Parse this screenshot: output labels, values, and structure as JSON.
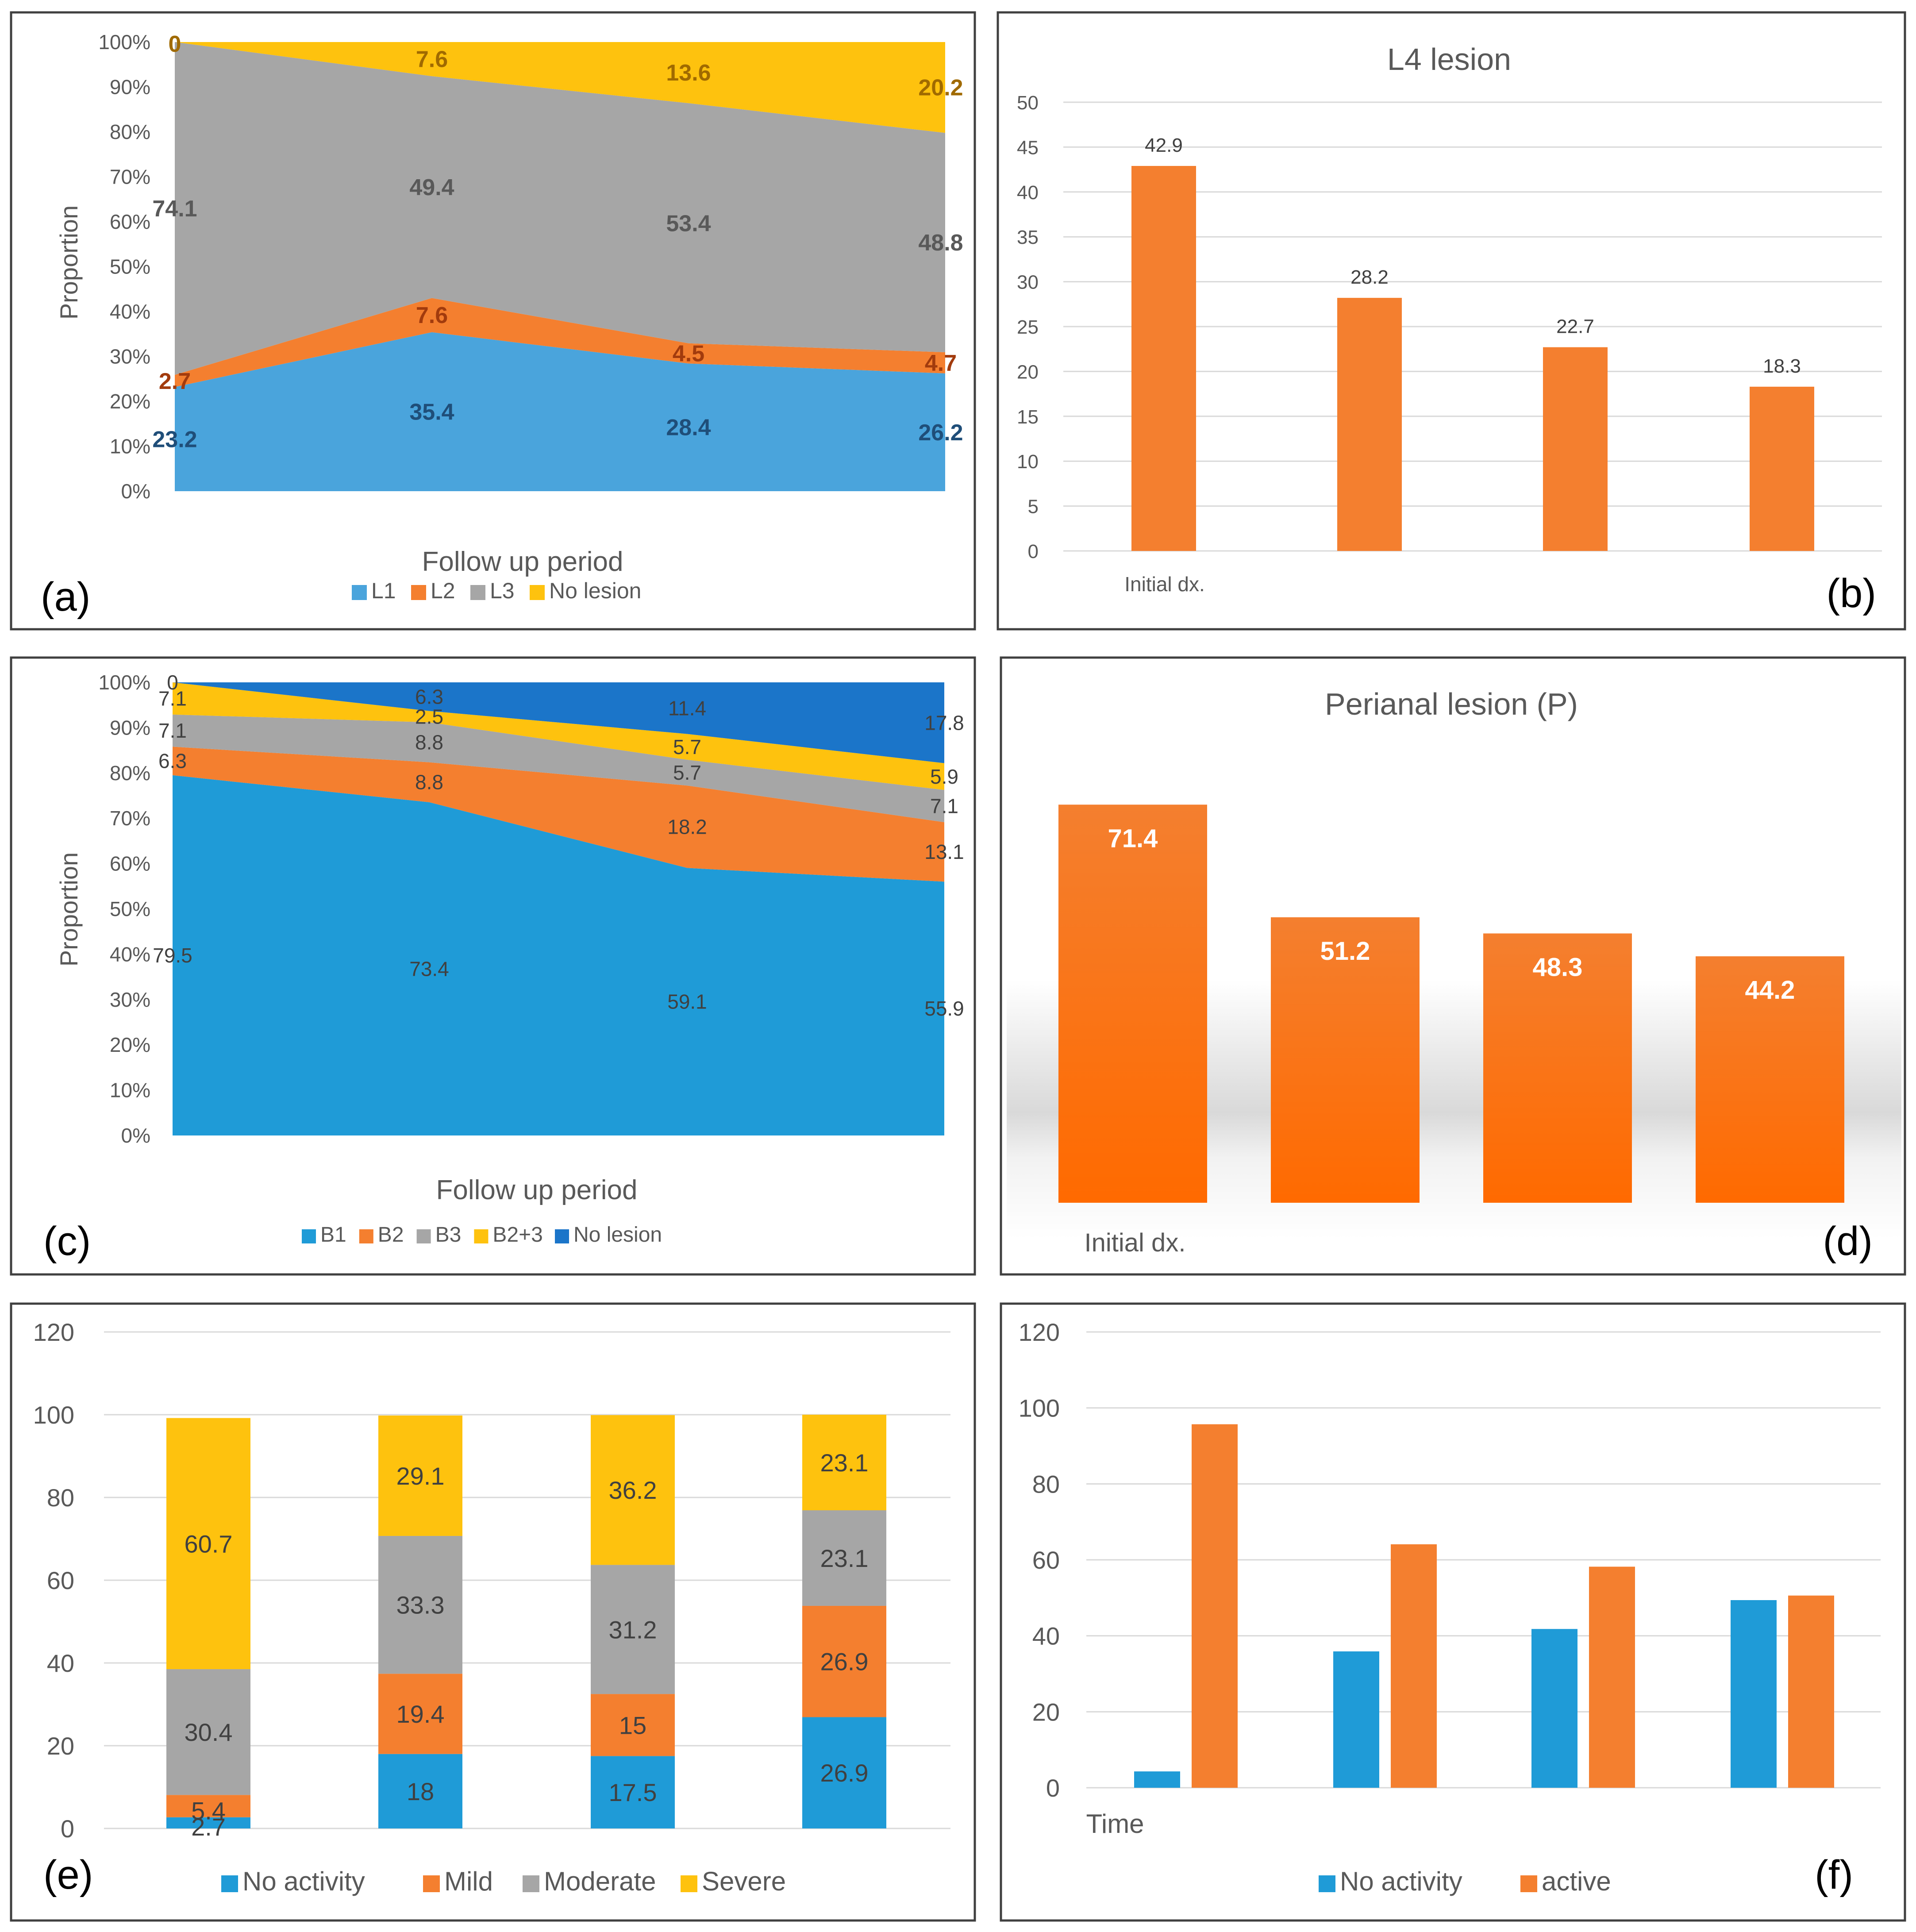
{
  "colors": {
    "blue": "#4aa4dc",
    "blue_dark": "#1f9bd7",
    "navy": "#1b75c9",
    "orange": "#f47f2f",
    "gray": "#a6a6a6",
    "yellow": "#fec20e",
    "panel_border": "#404040",
    "grid": "#d9d9d9",
    "axis_text": "#595959",
    "blue_label": "#1f4e79",
    "orange_label": "#a23b0d",
    "gray_label": "#595959",
    "yellow_label": "#a06a00"
  },
  "chart_data": [
    {
      "id": "a",
      "panel_letter": "(a)",
      "type": "area",
      "stacked_percent": true,
      "xlabel": "Follow up period",
      "ylabel": "Proportion",
      "y_ticks": [
        "100%",
        "90%",
        "80%",
        "70%",
        "60%",
        "50%",
        "40%",
        "30%",
        "20%",
        "10%",
        "0%"
      ],
      "series": [
        {
          "name": "L1",
          "values": [
            23.2,
            35.4,
            28.4,
            26.2
          ],
          "labels": [
            "23.2",
            "35.4",
            "28.4",
            "26.2"
          ]
        },
        {
          "name": "L2",
          "values": [
            2.7,
            7.6,
            4.5,
            4.7
          ],
          "labels": [
            "2.7",
            "7.6",
            "4.5",
            "4.7"
          ]
        },
        {
          "name": "L3",
          "values": [
            74.1,
            49.4,
            53.4,
            48.8
          ],
          "labels": [
            "74.1",
            "49.4",
            "53.4",
            "48.8"
          ]
        },
        {
          "name": "No lesion",
          "values": [
            0,
            7.6,
            13.6,
            20.2
          ],
          "labels": [
            "0",
            "7.6",
            "13.6",
            "20.2"
          ]
        }
      ],
      "legend": [
        "L1",
        "L2",
        "L3",
        "No lesion"
      ]
    },
    {
      "id": "b",
      "panel_letter": "(b)",
      "type": "bar",
      "title": "L4 lesion",
      "categories": [
        "Initial dx.",
        "",
        "",
        ""
      ],
      "values": [
        42.9,
        28.2,
        22.7,
        18.3
      ],
      "labels": [
        "42.9",
        "28.2",
        "22.7",
        "18.3"
      ],
      "ylim": [
        0,
        50
      ],
      "y_ticks": [
        "50",
        "45",
        "40",
        "35",
        "30",
        "25",
        "20",
        "15",
        "10",
        "5",
        "0"
      ]
    },
    {
      "id": "c",
      "panel_letter": "(c)",
      "type": "area",
      "stacked_percent": true,
      "xlabel": "Follow up period",
      "ylabel": "Proportion",
      "y_ticks": [
        "100%",
        "90%",
        "80%",
        "70%",
        "60%",
        "50%",
        "40%",
        "30%",
        "20%",
        "10%",
        "0%"
      ],
      "series": [
        {
          "name": "B1",
          "values": [
            79.5,
            73.4,
            59.1,
            55.9
          ],
          "labels": [
            "79.5",
            "73.4",
            "59.1",
            "55.9"
          ]
        },
        {
          "name": "B2",
          "values": [
            6.3,
            8.8,
            18.2,
            13.1
          ],
          "labels": [
            "6.3",
            "8.8",
            "18.2",
            "13.1"
          ]
        },
        {
          "name": "B3",
          "values": [
            7.1,
            8.8,
            5.7,
            7.1
          ],
          "labels": [
            "7.1",
            "8.8",
            "5.7",
            "7.1"
          ]
        },
        {
          "name": "B2+3",
          "values": [
            7.1,
            2.5,
            5.7,
            5.9
          ],
          "labels": [
            "7.1",
            "2.5",
            "5.7",
            "5.9"
          ]
        },
        {
          "name": "No lesion",
          "values": [
            0,
            6.3,
            11.4,
            17.8
          ],
          "labels": [
            "0",
            "6.3",
            "11.4",
            "17.8"
          ]
        }
      ],
      "legend": [
        "B1",
        "B2",
        "B3",
        "B2+3",
        "No lesion"
      ]
    },
    {
      "id": "d",
      "panel_letter": "(d)",
      "type": "bar",
      "title": "Perianal lesion (P)",
      "categories": [
        "Initial dx.",
        "",
        "",
        ""
      ],
      "values": [
        71.4,
        51.2,
        48.3,
        44.2
      ],
      "labels": [
        "71.4",
        "51.2",
        "48.3",
        "44.2"
      ]
    },
    {
      "id": "e",
      "panel_letter": "(e)",
      "type": "bar",
      "stacked": true,
      "ylim": [
        0,
        120
      ],
      "y_ticks": [
        "120",
        "100",
        "80",
        "60",
        "40",
        "20",
        "0"
      ],
      "series": [
        {
          "name": "No activity",
          "values": [
            2.7,
            18,
            17.5,
            26.9
          ],
          "labels": [
            "2.7",
            "18",
            "17.5",
            "26.9"
          ]
        },
        {
          "name": "Mild",
          "values": [
            5.4,
            19.4,
            15,
            26.9
          ],
          "labels": [
            "5.4",
            "19.4",
            "15",
            "26.9"
          ]
        },
        {
          "name": "Moderate",
          "values": [
            30.4,
            33.3,
            31.2,
            23.1
          ],
          "labels": [
            "30.4",
            "33.3",
            "31.2",
            "23.1"
          ]
        },
        {
          "name": "Severe",
          "values": [
            60.7,
            29.1,
            36.2,
            23.1
          ],
          "labels": [
            "60.7",
            "29.1",
            "36.2",
            "23.1"
          ]
        }
      ],
      "legend": [
        "No activity",
        "Mild",
        "Moderate",
        "Severe"
      ]
    },
    {
      "id": "f",
      "panel_letter": "(f)",
      "type": "bar",
      "grouped": true,
      "xlabel": "Time",
      "ylim": [
        0,
        120
      ],
      "y_ticks": [
        "120",
        "100",
        "80",
        "60",
        "40",
        "20",
        "0"
      ],
      "series": [
        {
          "name": "No activity",
          "values": [
            4.3,
            35.9,
            41.8,
            49.4
          ]
        },
        {
          "name": "active",
          "values": [
            95.7,
            64.1,
            58.2,
            50.6
          ]
        }
      ],
      "legend": [
        "No activity",
        "active"
      ]
    }
  ]
}
